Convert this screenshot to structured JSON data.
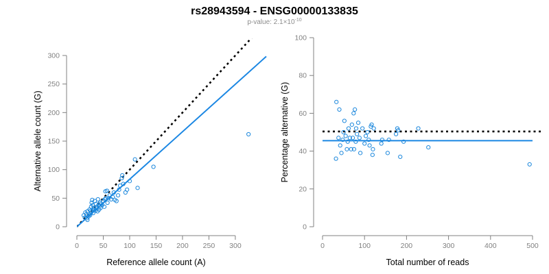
{
  "figure": {
    "title": "rs28943594 - ENSG00000133835",
    "subtitle": "p-value: 2.1×10",
    "subtitle_exponent": "-10"
  },
  "colors": {
    "point": "#1b87dc",
    "fit_line": "#1b87e3",
    "reference_line": "#000000"
  },
  "chart_data": [
    {
      "type": "scatter",
      "xlabel": "Reference allele count (A)",
      "ylabel": "Alternative allele count (G)",
      "xlim": [
        0,
        330
      ],
      "ylim": [
        0,
        300
      ],
      "x_ticks": [
        0,
        50,
        100,
        150,
        200,
        250,
        300
      ],
      "y_ticks": [
        0,
        50,
        100,
        150,
        200,
        250,
        300
      ],
      "grid": false,
      "legend": "none",
      "points": [
        [
          13,
          20
        ],
        [
          15,
          16
        ],
        [
          16,
          25
        ],
        [
          18,
          22
        ],
        [
          19,
          15
        ],
        [
          20,
          27
        ],
        [
          20,
          12
        ],
        [
          22,
          18
        ],
        [
          24,
          30
        ],
        [
          24,
          22
        ],
        [
          25,
          20
        ],
        [
          26,
          28
        ],
        [
          27,
          35
        ],
        [
          27,
          25
        ],
        [
          28,
          42
        ],
        [
          29,
          47
        ],
        [
          30,
          38
        ],
        [
          30,
          30
        ],
        [
          31,
          24
        ],
        [
          32,
          33
        ],
        [
          33,
          30
        ],
        [
          34,
          45
        ],
        [
          35,
          28
        ],
        [
          36,
          40
        ],
        [
          37,
          32
        ],
        [
          38,
          35
        ],
        [
          39,
          27
        ],
        [
          40,
          48
        ],
        [
          41,
          38
        ],
        [
          42,
          30
        ],
        [
          43,
          36
        ],
        [
          44,
          42
        ],
        [
          45,
          33
        ],
        [
          46,
          40
        ],
        [
          48,
          38
        ],
        [
          50,
          45
        ],
        [
          52,
          35
        ],
        [
          53,
          48
        ],
        [
          54,
          62
        ],
        [
          55,
          50
        ],
        [
          57,
          63
        ],
        [
          58,
          42
        ],
        [
          60,
          50
        ],
        [
          62,
          55
        ],
        [
          65,
          48
        ],
        [
          68,
          52
        ],
        [
          70,
          60
        ],
        [
          72,
          47
        ],
        [
          75,
          45
        ],
        [
          78,
          55
        ],
        [
          80,
          65
        ],
        [
          82,
          72
        ],
        [
          85,
          85
        ],
        [
          86,
          90
        ],
        [
          88,
          75
        ],
        [
          92,
          60
        ],
        [
          95,
          65
        ],
        [
          100,
          80
        ],
        [
          110,
          118
        ],
        [
          115,
          68
        ],
        [
          145,
          105
        ],
        [
          325,
          162
        ]
      ],
      "fit_line": {
        "slope": 0.832,
        "intercept": 0
      },
      "reference_line": {
        "slope": 1.0,
        "intercept": 0
      }
    },
    {
      "type": "scatter",
      "xlabel": "Total number of reads",
      "ylabel": "Percentage alternative (G)",
      "xlim": [
        0,
        500
      ],
      "ylim": [
        0,
        100
      ],
      "x_ticks": [
        0,
        100,
        200,
        300,
        400,
        500
      ],
      "y_ticks": [
        0,
        20,
        40,
        60,
        80,
        100
      ],
      "grid": false,
      "legend": "none",
      "points": [
        [
          32,
          36
        ],
        [
          33,
          66
        ],
        [
          38,
          47
        ],
        [
          40,
          62
        ],
        [
          42,
          43
        ],
        [
          45,
          39
        ],
        [
          48,
          46
        ],
        [
          50,
          50
        ],
        [
          52,
          56
        ],
        [
          55,
          48
        ],
        [
          58,
          41
        ],
        [
          60,
          45
        ],
        [
          62,
          52
        ],
        [
          65,
          47
        ],
        [
          68,
          41
        ],
        [
          70,
          54
        ],
        [
          72,
          47
        ],
        [
          74,
          60
        ],
        [
          75,
          41
        ],
        [
          77,
          62
        ],
        [
          79,
          45
        ],
        [
          80,
          52
        ],
        [
          82,
          49
        ],
        [
          85,
          55
        ],
        [
          88,
          47
        ],
        [
          90,
          39
        ],
        [
          95,
          52
        ],
        [
          100,
          44
        ],
        [
          103,
          48
        ],
        [
          107,
          50
        ],
        [
          110,
          46
        ],
        [
          112,
          43
        ],
        [
          115,
          53
        ],
        [
          117,
          54
        ],
        [
          119,
          38
        ],
        [
          120,
          41
        ],
        [
          122,
          52
        ],
        [
          140,
          44
        ],
        [
          142,
          46
        ],
        [
          155,
          39
        ],
        [
          158,
          46
        ],
        [
          175,
          49
        ],
        [
          178,
          52
        ],
        [
          180,
          51
        ],
        [
          185,
          37
        ],
        [
          193,
          45
        ],
        [
          228,
          52
        ],
        [
          252,
          42
        ],
        [
          493,
          33
        ]
      ],
      "fit_line": {
        "slope": 0,
        "intercept": 45.5
      },
      "reference_line": {
        "slope": 0,
        "intercept": 50.4
      }
    }
  ]
}
